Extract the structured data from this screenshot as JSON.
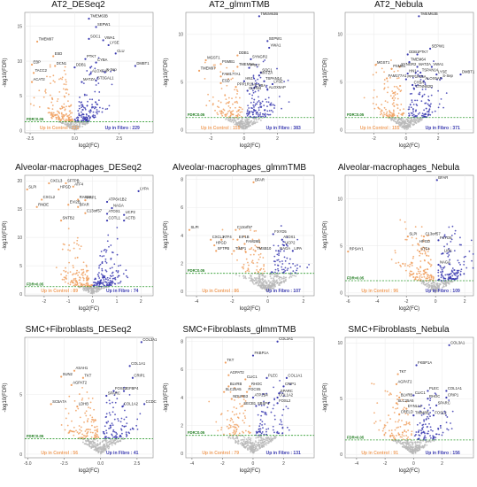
{
  "colors": {
    "up_control": "#f0a060",
    "up_fibro": "#3a3ab0",
    "not_sig": "#b9b9b9",
    "fdr_line": "#2e9b2e",
    "fdr_text": "#1c7a1c"
  },
  "chart_data": [
    {
      "type": "scatter",
      "title": "AT2_DESeq2",
      "xlabel": "log2(FC)",
      "ylabel": "-log10(FDR)",
      "xlim": [
        -2.8,
        4.4
      ],
      "ylim": [
        -0.3,
        17
      ],
      "xticks": [
        -2.5,
        0.0,
        2.5
      ],
      "yticks": [
        0,
        5,
        10,
        15
      ],
      "fdr_y": 1.3,
      "fdr_label": "FDR=0.05",
      "up_control_text": "Up in Control : 221",
      "up_fibro_text": "Up in Fibro : 229",
      "genes": [
        {
          "label": "TMEM63B",
          "x": 0.8,
          "y": 16.1
        },
        {
          "label": "SEPW1",
          "x": 1.2,
          "y": 14.9
        },
        {
          "label": "TMEM97",
          "x": -2.1,
          "y": 12.8
        },
        {
          "label": "VWA1",
          "x": 1.6,
          "y": 13.0
        },
        {
          "label": "SOC1",
          "x": 0.8,
          "y": 13.2
        },
        {
          "label": "LYSE",
          "x": 1.9,
          "y": 12.3
        },
        {
          "label": "ESD",
          "x": -1.2,
          "y": 10.7
        },
        {
          "label": "CLU",
          "x": 2.3,
          "y": 11.1
        },
        {
          "label": "EBP",
          "x": -2.4,
          "y": 9.5
        },
        {
          "label": "PTK7",
          "x": 0.6,
          "y": 10.3
        },
        {
          "label": "DCN1",
          "x": -1.1,
          "y": 9.3
        },
        {
          "label": "CYBA",
          "x": 1.2,
          "y": 9.8
        },
        {
          "label": "DDB1",
          "x": 0.0,
          "y": 9.1
        },
        {
          "label": "S-Sep",
          "x": 1.7,
          "y": 8.4
        },
        {
          "label": "ALOX5AP",
          "x": 0.9,
          "y": 8.2
        },
        {
          "label": "DMBT1",
          "x": 3.4,
          "y": 9.3
        },
        {
          "label": "TACC2",
          "x": -2.3,
          "y": 8.3
        },
        {
          "label": "ST3GAL1",
          "x": 1.2,
          "y": 7.2
        },
        {
          "label": "MATZA",
          "x": 0.4,
          "y": 7.0
        },
        {
          "label": "ACAT2",
          "x": -2.4,
          "y": 7.0
        }
      ]
    },
    {
      "type": "scatter",
      "title": "AT2_glmmTMB",
      "xlabel": "log2(FC)",
      "ylabel": "-log10(FDR)",
      "xlim": [
        -3.5,
        4.2
      ],
      "ylim": [
        -0.3,
        12.3
      ],
      "xticks": [
        -2,
        0,
        2
      ],
      "yticks": [
        0,
        5,
        10
      ],
      "fdr_y": 1.3,
      "fdr_label": "FDR=0.05",
      "up_control_text": "Up in Control : 155",
      "up_fibro_text": "Up in Fibro : 383",
      "genes": [
        {
          "label": "TMEM63B",
          "x": 0.9,
          "y": 11.9
        },
        {
          "label": "SEPW1",
          "x": 1.4,
          "y": 9.3
        },
        {
          "label": "DDB1",
          "x": -0.4,
          "y": 7.8
        },
        {
          "label": "VWA1",
          "x": 1.5,
          "y": 8.6
        },
        {
          "label": "MGST1",
          "x": -2.3,
          "y": 7.3
        },
        {
          "label": "SYNGR2",
          "x": 0.4,
          "y": 7.4
        },
        {
          "label": "PSMB1",
          "x": -1.4,
          "y": 6.9
        },
        {
          "label": "TMEM64",
          "x": -0.4,
          "y": 6.6
        },
        {
          "label": "PTK7",
          "x": 0.3,
          "y": 6.5
        },
        {
          "label": "SOC1",
          "x": 1.0,
          "y": 6.0
        },
        {
          "label": "TMEM97",
          "x": -2.7,
          "y": 6.2
        },
        {
          "label": "FAM177A1",
          "x": -1.4,
          "y": 5.6
        },
        {
          "label": "MATZA",
          "x": 0.9,
          "y": 5.7
        },
        {
          "label": "TSPAN14",
          "x": 1.2,
          "y": 5.1
        },
        {
          "label": "ESD",
          "x": -1.4,
          "y": 4.9
        },
        {
          "label": "HN1",
          "x": 0.0,
          "y": 5.1
        },
        {
          "label": "LYSE",
          "x": 1.7,
          "y": 4.8
        },
        {
          "label": "PPP1R15A",
          "x": -0.5,
          "y": 4.5
        },
        {
          "label": "CYBA",
          "x": 0.6,
          "y": 4.4
        },
        {
          "label": "ALOX5AP",
          "x": 1.4,
          "y": 4.2
        },
        {
          "label": "OLFM4",
          "x": 0.2,
          "y": 4.1
        }
      ]
    },
    {
      "type": "scatter",
      "title": "AT2_Nebula",
      "xlabel": "log2(FC)",
      "ylabel": "-log10(FDR)",
      "xlim": [
        -3.8,
        4.2
      ],
      "ylim": [
        -0.3,
        12.3
      ],
      "xticks": [
        -2,
        0,
        2
      ],
      "yticks": [
        0,
        5,
        10
      ],
      "fdr_y": 1.3,
      "fdr_label": "FDR=0.05",
      "up_control_text": "Up in Control : 155",
      "up_fibro_text": "Up in Fibro : 371",
      "genes": [
        {
          "label": "TMEM63B",
          "x": 0.8,
          "y": 11.9
        },
        {
          "label": "SEPW1",
          "x": 1.5,
          "y": 8.5
        },
        {
          "label": "DDB1",
          "x": 0.1,
          "y": 7.9
        },
        {
          "label": "PTK7",
          "x": 0.7,
          "y": 7.9
        },
        {
          "label": "MGST1",
          "x": -1.9,
          "y": 6.8
        },
        {
          "label": "TMEM64",
          "x": 0.2,
          "y": 7.1
        },
        {
          "label": "SYNGR2",
          "x": -0.4,
          "y": 6.6
        },
        {
          "label": "MATZA",
          "x": 0.7,
          "y": 6.6
        },
        {
          "label": "PSMB1",
          "x": -0.9,
          "y": 6.4
        },
        {
          "label": "VWA1",
          "x": 1.6,
          "y": 6.6
        },
        {
          "label": "HN1",
          "x": 0.1,
          "y": 5.9
        },
        {
          "label": "TSPAN14",
          "x": 0.9,
          "y": 6.0
        },
        {
          "label": "FAM177A1",
          "x": -1.2,
          "y": 5.4
        },
        {
          "label": "DMBT1",
          "x": 3.4,
          "y": 5.8
        },
        {
          "label": "LYSE",
          "x": 1.9,
          "y": 5.8
        },
        {
          "label": "PPP1R15A",
          "x": 0.0,
          "y": 5.3
        },
        {
          "label": "ALOX5AP",
          "x": 1.1,
          "y": 5.1
        },
        {
          "label": "S-Sep",
          "x": 2.2,
          "y": 5.4
        },
        {
          "label": "CYBA",
          "x": 0.4,
          "y": 4.7
        },
        {
          "label": "CTNNB2D",
          "x": 0.5,
          "y": 4.3
        }
      ]
    },
    {
      "type": "scatter",
      "title": "Alveolar-macrophages_DESeq2",
      "xlabel": "log2(FC)",
      "ylabel": "-log10(FDR)",
      "xlim": [
        -2.8,
        2.5
      ],
      "ylim": [
        -0.3,
        21
      ],
      "xticks": [
        -2,
        -1,
        0,
        1,
        2
      ],
      "yticks": [
        0,
        5,
        10,
        15,
        20
      ],
      "fdr_y": 1.3,
      "fdr_label": "FDR=0.05",
      "up_control_text": "Up in Control : 89",
      "up_fibro_text": "Up in Fibro : 74",
      "genes": [
        {
          "label": "CXCL3",
          "x": -1.8,
          "y": 19.6
        },
        {
          "label": "SFTPB",
          "x": -1.1,
          "y": 19.6
        },
        {
          "label": "SLPI",
          "x": -2.7,
          "y": 18.5
        },
        {
          "label": "HPGD",
          "x": -1.4,
          "y": 18.5
        },
        {
          "label": "ATF4",
          "x": -0.8,
          "y": 19.0
        },
        {
          "label": "LYPA",
          "x": 1.9,
          "y": 18.2
        },
        {
          "label": "CXCL2",
          "x": -2.1,
          "y": 16.7
        },
        {
          "label": "RAB13",
          "x": -0.6,
          "y": 16.7
        },
        {
          "label": "PHP1",
          "x": -0.3,
          "y": 16.6
        },
        {
          "label": "ATP6V1B2",
          "x": 0.6,
          "y": 16.3
        },
        {
          "label": "RNDE",
          "x": -2.3,
          "y": 15.4
        },
        {
          "label": "EVI2B",
          "x": -1.0,
          "y": 15.8
        },
        {
          "label": "BFAR",
          "x": -0.6,
          "y": 15.4
        },
        {
          "label": "NAGA",
          "x": 0.8,
          "y": 15.2
        },
        {
          "label": "C13orf57",
          "x": -0.3,
          "y": 14.3
        },
        {
          "label": "ATOX1",
          "x": 0.6,
          "y": 14.2
        },
        {
          "label": "UCP2",
          "x": 1.3,
          "y": 14.0
        },
        {
          "label": "SNTB2",
          "x": -1.3,
          "y": 13.0
        },
        {
          "label": "COTL1",
          "x": 0.6,
          "y": 13.0
        },
        {
          "label": "ACTB",
          "x": 1.3,
          "y": 13.0
        }
      ]
    },
    {
      "type": "scatter",
      "title": "Alveolar-macrophages_glmmTMB",
      "xlabel": "log2(FC)",
      "ylabel": "-log10(FDR)",
      "xlim": [
        -4.6,
        2.6
      ],
      "ylim": [
        -0.3,
        8.3
      ],
      "xticks": [
        -4,
        -2,
        0,
        2
      ],
      "yticks": [
        0,
        2,
        4,
        6,
        8
      ],
      "fdr_y": 1.3,
      "fdr_label": "FDR=0.05",
      "up_control_text": "Up in Control : 86",
      "up_fibro_text": "Up in Fibro : 107",
      "genes": [
        {
          "label": "BFAR",
          "x": -0.8,
          "y": 7.8
        },
        {
          "label": "SLPI",
          "x": -4.4,
          "y": 4.4
        },
        {
          "label": "C13orf57",
          "x": -1.8,
          "y": 4.4
        },
        {
          "label": "FXYD5",
          "x": 0.3,
          "y": 4.1
        },
        {
          "label": "CXCL3",
          "x": -3.2,
          "y": 3.7
        },
        {
          "label": "ATF4",
          "x": -2.6,
          "y": 3.7
        },
        {
          "label": "EIF1B",
          "x": -1.7,
          "y": 3.7
        },
        {
          "label": "ATOX1",
          "x": 0.8,
          "y": 3.7
        },
        {
          "label": "HPGD",
          "x": -3.0,
          "y": 3.3
        },
        {
          "label": "FAM26B",
          "x": -1.3,
          "y": 3.4
        },
        {
          "label": "UCP2",
          "x": 0.9,
          "y": 3.3
        },
        {
          "label": "SFTPB",
          "x": -2.9,
          "y": 2.9
        },
        {
          "label": "TIMP1",
          "x": -1.9,
          "y": 2.9
        },
        {
          "label": "TMSB10",
          "x": -0.7,
          "y": 2.9
        },
        {
          "label": "NAGA",
          "x": 0.6,
          "y": 2.9
        },
        {
          "label": "LIPA",
          "x": 1.4,
          "y": 2.9
        }
      ]
    },
    {
      "type": "scatter",
      "title": "Alveolar-macrophages_Nebula",
      "xlabel": "log2(FC)",
      "ylabel": "-log10(FDR)",
      "xlim": [
        -6.2,
        2.6
      ],
      "ylim": [
        -0.3,
        12.5
      ],
      "xticks": [
        -6,
        -4,
        -2,
        0,
        2
      ],
      "yticks": [
        0,
        5,
        10
      ],
      "fdr_y": 1.3,
      "fdr_label": "FDR=0.05",
      "up_control_text": "Up in Control : 96",
      "up_fibro_text": "Up in Fibro : 109",
      "genes": [
        {
          "label": "BFAR",
          "x": 0.1,
          "y": 12.0
        },
        {
          "label": "SLPI",
          "x": -1.9,
          "y": 6.0
        },
        {
          "label": "C13orf57",
          "x": -0.8,
          "y": 6.0
        },
        {
          "label": "FXYD5",
          "x": 0.2,
          "y": 5.6
        },
        {
          "label": "HPGD",
          "x": -1.2,
          "y": 5.2
        },
        {
          "label": "RPS4Y1",
          "x": -6.0,
          "y": 4.4
        },
        {
          "label": "ATF4",
          "x": -1.1,
          "y": 4.4
        },
        {
          "label": "LIPA",
          "x": 0.5,
          "y": 4.2
        },
        {
          "label": "NAGA",
          "x": 0.2,
          "y": 3.0
        }
      ]
    },
    {
      "type": "scatter",
      "title": "SMC+Fibroblasts_DESeq2",
      "xlabel": "log2(FC)",
      "ylabel": "-log10(FDR)",
      "xlim": [
        -5.2,
        3.6
      ],
      "ylim": [
        -0.3,
        9.8
      ],
      "xticks": [
        -5.0,
        -2.5,
        0.0,
        2.5
      ],
      "yticks": [
        0,
        5
      ],
      "fdr_y": 1.3,
      "fdr_label": "FDR=0.05",
      "up_control_text": "Up in Control : 56",
      "up_fibro_text": "Up in Fibro : 41",
      "genes": [
        {
          "label": "COL3A1",
          "x": 2.8,
          "y": 9.4
        },
        {
          "label": "COL1A1",
          "x": 2.0,
          "y": 7.4
        },
        {
          "label": "ASAH1",
          "x": -1.8,
          "y": 7.0
        },
        {
          "label": "SUN2",
          "x": -2.7,
          "y": 6.5
        },
        {
          "label": "TKT",
          "x": -1.2,
          "y": 6.4
        },
        {
          "label": "CRIP1",
          "x": 2.2,
          "y": 6.4
        },
        {
          "label": "AGPAT2",
          "x": -2.0,
          "y": 5.8
        },
        {
          "label": "FOSL2",
          "x": 0.9,
          "y": 5.3
        },
        {
          "label": "IGFBP4",
          "x": 1.6,
          "y": 5.3
        },
        {
          "label": "SPARC",
          "x": 0.4,
          "y": 4.9
        },
        {
          "label": "SC5A7A",
          "x": -3.4,
          "y": 4.2
        },
        {
          "label": "LDHB",
          "x": -1.6,
          "y": 4.0
        },
        {
          "label": "COL1A2",
          "x": 1.5,
          "y": 4.0
        },
        {
          "label": "CCDC80",
          "x": 3.0,
          "y": 4.2
        }
      ]
    },
    {
      "type": "scatter",
      "title": "SMC+Fibroblasts_glmmTMB",
      "xlabel": "log2(FC)",
      "ylabel": "-log10(FDR)",
      "xlim": [
        -4.4,
        4.0
      ],
      "ylim": [
        -0.3,
        8.3
      ],
      "xticks": [
        -4,
        -2,
        0,
        2
      ],
      "yticks": [
        0,
        2,
        4,
        6,
        8
      ],
      "fdr_y": 1.3,
      "fdr_label": "FDR=0.05",
      "up_control_text": "Up in Control : 79",
      "up_fibro_text": "Up in Fibro : 131",
      "genes": [
        {
          "label": "COL3A1",
          "x": 1.6,
          "y": 8.0
        },
        {
          "label": "FKBP1A",
          "x": 0.0,
          "y": 7.0
        },
        {
          "label": "TKT",
          "x": -1.8,
          "y": 6.5
        },
        {
          "label": "AGPAT2",
          "x": -1.6,
          "y": 5.6
        },
        {
          "label": "PLEC",
          "x": 0.9,
          "y": 5.4
        },
        {
          "label": "COL1A1",
          "x": 2.2,
          "y": 5.4
        },
        {
          "label": "CLIC1",
          "x": -0.5,
          "y": 5.3
        },
        {
          "label": "BLVRB",
          "x": -1.6,
          "y": 4.8
        },
        {
          "label": "RHOC",
          "x": -0.2,
          "y": 4.8
        },
        {
          "label": "CRIP1",
          "x": 2.0,
          "y": 4.8
        },
        {
          "label": "SLC25A5",
          "x": -1.9,
          "y": 4.4
        },
        {
          "label": "FGCS5",
          "x": -0.4,
          "y": 4.4
        },
        {
          "label": "SPARC",
          "x": 1.7,
          "y": 4.3
        },
        {
          "label": "NDUFB3",
          "x": -1.4,
          "y": 3.9
        },
        {
          "label": "ATP2B4",
          "x": 0.0,
          "y": 4.0
        },
        {
          "label": "COL1A2",
          "x": 1.6,
          "y": 4.0
        },
        {
          "label": "SECB1",
          "x": -0.7,
          "y": 3.4
        },
        {
          "label": "SBSP1",
          "x": 0.2,
          "y": 3.4
        },
        {
          "label": "FOSL2",
          "x": 1.6,
          "y": 3.6
        }
      ]
    },
    {
      "type": "scatter",
      "title": "SMC+Fibroblasts_Nebula",
      "xlabel": "log2(FC)",
      "ylabel": "-log10(FDR)",
      "xlim": [
        -4.8,
        4.2
      ],
      "ylim": [
        -0.3,
        10.5
      ],
      "xticks": [
        -4,
        -2,
        0,
        2
      ],
      "yticks": [
        0,
        5,
        10
      ],
      "fdr_y": 1.3,
      "fdr_label": "FDR=0.05",
      "up_control_text": "Up in Control : 91",
      "up_fibro_text": "Up in Fibro : 156",
      "genes": [
        {
          "label": "COL3A1",
          "x": 2.5,
          "y": 9.8
        },
        {
          "label": "FKBP1A",
          "x": 0.2,
          "y": 8.0
        },
        {
          "label": "TKT",
          "x": -1.1,
          "y": 7.2
        },
        {
          "label": "AGPAT2",
          "x": -1.2,
          "y": 6.3
        },
        {
          "label": "PLEC",
          "x": 1.0,
          "y": 5.7
        },
        {
          "label": "COL1A1",
          "x": 2.3,
          "y": 5.7
        },
        {
          "label": "BLVRB",
          "x": -1.0,
          "y": 5.1
        },
        {
          "label": "CLIC1",
          "x": 0.0,
          "y": 5.3
        },
        {
          "label": "RHOC",
          "x": 1.0,
          "y": 5.0
        },
        {
          "label": "CRIP1",
          "x": 2.3,
          "y": 5.1
        },
        {
          "label": "SLC25A5",
          "x": -1.2,
          "y": 4.6
        },
        {
          "label": "SPARC",
          "x": 1.6,
          "y": 4.4
        },
        {
          "label": "DYNLL1",
          "x": -0.5,
          "y": 4.1
        },
        {
          "label": "CRELD",
          "x": -1.0,
          "y": 3.6
        },
        {
          "label": "TIMM8B",
          "x": 0.0,
          "y": 3.5
        },
        {
          "label": "FOSL2",
          "x": 1.4,
          "y": 3.5
        }
      ]
    }
  ]
}
